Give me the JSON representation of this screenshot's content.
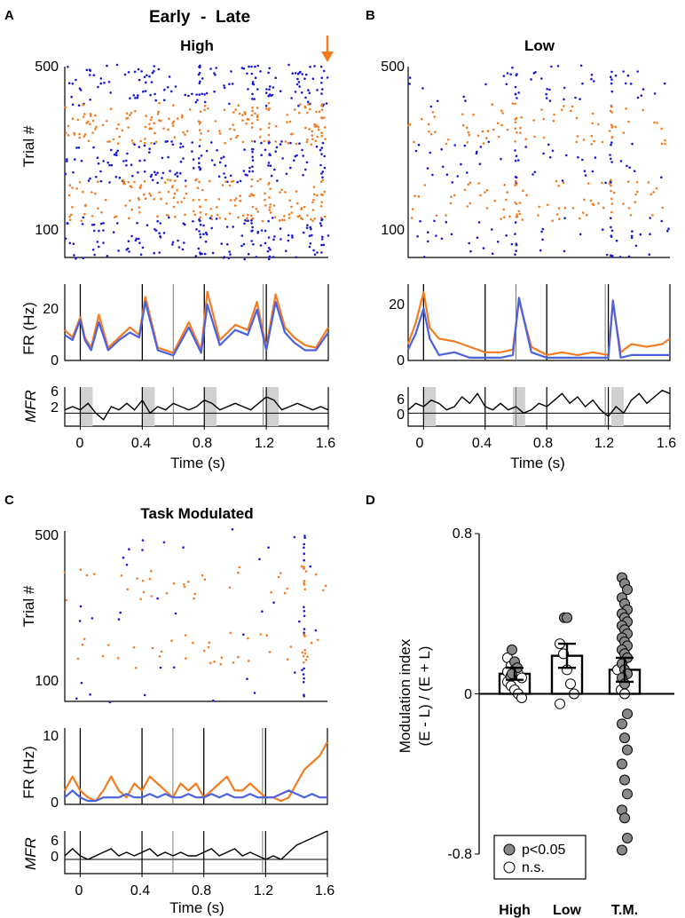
{
  "legend_top": {
    "early": "Early",
    "sep": "-",
    "late": "Late"
  },
  "colors": {
    "early": "#F47B20",
    "late": "#1a1ad6",
    "late_line": "#4a62e0",
    "shade": "#d0d0d0"
  },
  "chart_data": [
    {
      "panel": "A",
      "title": "High",
      "type": "scatter",
      "raster": {
        "ylabel": "Trial #",
        "yticks": [
          "500",
          "100"
        ],
        "blocks_top_to_bottom": [
          "Late",
          "Early",
          "Late",
          "Early",
          "Late"
        ],
        "column_lines_s": [
          0.4,
          0.8,
          1.2
        ],
        "dense_column_s": [
          0.77,
          1.11,
          1.22,
          1.56
        ]
      },
      "fr": {
        "type": "line",
        "ylabel": "FR (Hz)",
        "yticks": [
          "20",
          "0"
        ],
        "ylim": [
          0,
          30
        ],
        "xlim": [
          -0.1,
          1.6
        ],
        "event_lines_s": [
          0,
          0.4,
          0.8,
          1.2
        ],
        "gray_lines_s": [
          0.6,
          1.18
        ],
        "series": [
          {
            "name": "Early",
            "x": [
              -0.1,
              -0.05,
              0,
              0.03,
              0.07,
              0.12,
              0.18,
              0.25,
              0.32,
              0.38,
              0.42,
              0.5,
              0.6,
              0.7,
              0.78,
              0.82,
              0.9,
              1.0,
              1.08,
              1.14,
              1.2,
              1.26,
              1.32,
              1.38,
              1.45,
              1.52,
              1.6
            ],
            "values": [
              12,
              9,
              17,
              9,
              5,
              18,
              5,
              9,
              13,
              10,
              25,
              5,
              3,
              15,
              4,
              27,
              8,
              14,
              12,
              23,
              5,
              26,
              13,
              9,
              6,
              5,
              13
            ]
          },
          {
            "name": "Late",
            "x": [
              -0.1,
              -0.05,
              0,
              0.03,
              0.07,
              0.12,
              0.18,
              0.25,
              0.32,
              0.38,
              0.42,
              0.5,
              0.6,
              0.7,
              0.78,
              0.82,
              0.9,
              1.0,
              1.08,
              1.14,
              1.2,
              1.26,
              1.32,
              1.38,
              1.45,
              1.52,
              1.6
            ],
            "values": [
              10,
              8,
              16,
              8,
              4,
              15,
              4,
              8,
              11,
              9,
              23,
              4,
              2,
              13,
              3,
              22,
              6,
              12,
              10,
              20,
              4,
              23,
              11,
              7,
              4,
              4,
              11
            ]
          }
        ]
      },
      "mfr": {
        "type": "line",
        "ylabel": "MFR",
        "yticks": [
          "6",
          "2"
        ],
        "xlabel": "Time (s)",
        "xticks": [
          "0",
          "0.4",
          "0.8",
          "1.2",
          "1.6"
        ],
        "shaded_s": [
          [
            0,
            0.08
          ],
          [
            0.4,
            0.48
          ],
          [
            0.8,
            0.88
          ],
          [
            1.2,
            1.28
          ]
        ],
        "x": [
          -0.1,
          -0.05,
          0,
          0.05,
          0.1,
          0.15,
          0.2,
          0.25,
          0.3,
          0.35,
          0.4,
          0.45,
          0.5,
          0.55,
          0.6,
          0.65,
          0.7,
          0.75,
          0.8,
          0.85,
          0.9,
          0.95,
          1.0,
          1.05,
          1.1,
          1.15,
          1.2,
          1.25,
          1.3,
          1.35,
          1.4,
          1.45,
          1.5,
          1.55,
          1.6
        ],
        "values": [
          1,
          2,
          1,
          3,
          0,
          -2,
          2,
          1,
          3,
          1,
          4,
          0,
          2,
          1,
          3,
          2,
          1,
          2,
          4,
          3,
          1,
          2,
          3,
          2,
          1,
          3,
          5,
          4,
          1,
          2,
          3,
          2,
          1,
          2,
          1
        ]
      }
    },
    {
      "panel": "B",
      "title": "Low",
      "type": "scatter",
      "raster": {
        "ylabel": "",
        "yticks": [
          "500",
          "100"
        ],
        "blocks_top_to_bottom": [
          "Late",
          "Early",
          "Late",
          "Early",
          "Late"
        ],
        "column_lines_s": [
          0.4,
          0.6,
          0.8,
          1.2
        ],
        "dense_column_s": [
          0.6,
          1.22
        ]
      },
      "fr": {
        "type": "line",
        "ylabel": "",
        "yticks": [
          "20",
          "0"
        ],
        "ylim": [
          0,
          28
        ],
        "xlim": [
          -0.1,
          1.6
        ],
        "event_lines_s": [
          0,
          0.4,
          0.8,
          1.2
        ],
        "gray_lines_s": [
          0.6,
          1.18
        ],
        "series": [
          {
            "name": "Early",
            "x": [
              -0.1,
              -0.05,
              0,
              0.04,
              0.1,
              0.2,
              0.3,
              0.4,
              0.5,
              0.58,
              0.62,
              0.7,
              0.8,
              0.9,
              1.0,
              1.1,
              1.2,
              1.23,
              1.28,
              1.35,
              1.45,
              1.55,
              1.6
            ],
            "values": [
              6,
              14,
              25,
              12,
              8,
              7,
              5,
              3,
              3,
              4,
              22,
              5,
              2,
              3,
              2,
              3,
              2,
              21,
              3,
              6,
              5,
              6,
              8
            ]
          },
          {
            "name": "Late",
            "x": [
              -0.1,
              -0.05,
              0,
              0.04,
              0.1,
              0.2,
              0.3,
              0.4,
              0.5,
              0.58,
              0.62,
              0.7,
              0.8,
              0.9,
              1.0,
              1.1,
              1.2,
              1.23,
              1.28,
              1.35,
              1.45,
              1.55,
              1.6
            ],
            "values": [
              4,
              10,
              19,
              8,
              2,
              3,
              1,
              1,
              1,
              2,
              23,
              3,
              1,
              1,
              1,
              1,
              1,
              22,
              1,
              2,
              2,
              2,
              2
            ]
          }
        ]
      },
      "mfr": {
        "type": "line",
        "ylabel": "",
        "yticks": [
          "6",
          "0"
        ],
        "xlabel": "Time (s)",
        "xticks": [
          "0",
          "0.4",
          "0.8",
          "1.2",
          "1.6"
        ],
        "shaded_s": [
          [
            0,
            0.08
          ],
          [
            0.58,
            0.66
          ],
          [
            1.22,
            1.3
          ]
        ],
        "x": [
          -0.1,
          -0.05,
          0,
          0.05,
          0.1,
          0.15,
          0.2,
          0.25,
          0.3,
          0.35,
          0.4,
          0.45,
          0.5,
          0.55,
          0.6,
          0.65,
          0.7,
          0.75,
          0.8,
          0.85,
          0.9,
          0.95,
          1.0,
          1.05,
          1.1,
          1.15,
          1.2,
          1.25,
          1.3,
          1.35,
          1.4,
          1.45,
          1.5,
          1.55,
          1.6
        ],
        "values": [
          1,
          3,
          2,
          4,
          3,
          1,
          2,
          5,
          3,
          6,
          2,
          1,
          3,
          1,
          2,
          0,
          1,
          3,
          2,
          4,
          6,
          3,
          5,
          2,
          4,
          1,
          -1,
          2,
          0,
          4,
          6,
          3,
          5,
          7,
          6
        ]
      }
    },
    {
      "panel": "C",
      "title": "Task Modulated",
      "type": "scatter",
      "raster": {
        "ylabel": "Trial #",
        "yticks": [
          "500",
          "100"
        ],
        "blocks_top_to_bottom": [
          "Late",
          "Early",
          "Late",
          "Early",
          "Late"
        ],
        "column_lines_s": [],
        "dense_column_s": [
          1.45
        ]
      },
      "fr": {
        "type": "line",
        "ylabel": "FR (Hz)",
        "yticks": [
          "10",
          "0"
        ],
        "ylim": [
          0,
          11
        ],
        "xlim": [
          -0.1,
          1.6
        ],
        "event_lines_s": [
          0,
          0.4,
          0.8,
          1.2
        ],
        "gray_lines_s": [
          0.6,
          1.18
        ],
        "series": [
          {
            "name": "Early",
            "x": [
              -0.1,
              -0.05,
              0,
              0.05,
              0.1,
              0.15,
              0.2,
              0.25,
              0.3,
              0.35,
              0.4,
              0.45,
              0.5,
              0.55,
              0.6,
              0.65,
              0.7,
              0.75,
              0.8,
              0.85,
              0.9,
              0.95,
              1.0,
              1.05,
              1.1,
              1.15,
              1.2,
              1.25,
              1.3,
              1.35,
              1.4,
              1.45,
              1.5,
              1.55,
              1.6
            ],
            "values": [
              2,
              4,
              2,
              1,
              0.5,
              2,
              4,
              2,
              1,
              3,
              2,
              4,
              3,
              2,
              1,
              3,
              2,
              3,
              1,
              2,
              3,
              4,
              2,
              2,
              3,
              2,
              1,
              1,
              0.5,
              1,
              3,
              5,
              6,
              7,
              9
            ]
          },
          {
            "name": "Late",
            "x": [
              -0.1,
              -0.05,
              0,
              0.05,
              0.1,
              0.15,
              0.2,
              0.25,
              0.3,
              0.35,
              0.4,
              0.45,
              0.5,
              0.55,
              0.6,
              0.65,
              0.7,
              0.75,
              0.8,
              0.85,
              0.9,
              0.95,
              1.0,
              1.05,
              1.1,
              1.15,
              1.2,
              1.25,
              1.3,
              1.35,
              1.4,
              1.45,
              1.5,
              1.55,
              1.6
            ],
            "values": [
              1,
              2,
              1,
              0.5,
              0.5,
              1,
              1,
              1,
              1.5,
              1,
              1,
              1.5,
              1,
              1.5,
              1,
              1,
              1.5,
              1,
              1,
              1.5,
              1,
              1.5,
              1,
              1,
              1.5,
              1,
              1,
              1,
              1.5,
              2,
              1.5,
              1,
              1.5,
              1,
              1
            ]
          }
        ]
      },
      "mfr": {
        "type": "line",
        "ylabel": "MFR",
        "yticks": [
          "6",
          "0"
        ],
        "xlabel": "Time (s)",
        "xticks": [
          "0",
          "0.4",
          "0.8",
          "1.2",
          "1.6"
        ],
        "shaded_s": [],
        "x": [
          -0.1,
          -0.05,
          0,
          0.05,
          0.1,
          0.15,
          0.2,
          0.25,
          0.3,
          0.35,
          0.4,
          0.45,
          0.5,
          0.55,
          0.6,
          0.65,
          0.7,
          0.75,
          0.8,
          0.85,
          0.9,
          0.95,
          1.0,
          1.05,
          1.1,
          1.15,
          1.2,
          1.25,
          1.3,
          1.35,
          1.4,
          1.45,
          1.5,
          1.55,
          1.6
        ],
        "values": [
          1,
          3,
          1,
          0,
          1,
          2,
          3,
          1,
          2,
          1,
          2,
          3,
          1,
          2,
          1,
          2,
          1,
          1,
          2,
          3,
          1,
          2,
          3,
          1,
          2,
          1,
          0,
          1,
          0,
          2,
          4,
          5,
          6,
          7,
          8
        ]
      }
    },
    {
      "panel": "D",
      "type": "bar",
      "ylabel_line1": "Modulation index",
      "ylabel_line2": "(E - L) / (E + L)",
      "categories": [
        "High",
        "Low",
        "T.M."
      ],
      "values": [
        0.1,
        0.19,
        0.12
      ],
      "errors": [
        0.03,
        0.06,
        0.06
      ],
      "ylim": [
        -0.8,
        0.8
      ],
      "yticks": [
        "0.8",
        "0",
        "-0.8"
      ],
      "points": {
        "High": {
          "filled": [
            0.22,
            0.16,
            0.13,
            0.1
          ],
          "open": [
            0.18,
            0.14,
            0.12,
            0.1,
            0.08,
            0.06,
            0.04,
            0.02,
            0.0,
            -0.02,
            0.11,
            0.09
          ]
        },
        "Low": {
          "filled": [
            0.38,
            0.38
          ],
          "open": [
            0.25,
            0.2,
            0.12,
            0.05,
            0.0,
            -0.05
          ]
        },
        "T.M.": {
          "filled": [
            0.58,
            0.55,
            0.52,
            0.48,
            0.45,
            0.42,
            0.4,
            0.38,
            0.36,
            0.34,
            0.32,
            0.3,
            0.28,
            0.26,
            0.24,
            0.22,
            0.2,
            0.18,
            0.15,
            0.12,
            0.1,
            0.08,
            0.05,
            -0.1,
            -0.15,
            -0.22,
            -0.28,
            -0.35,
            -0.43,
            -0.5,
            -0.58,
            -0.62,
            -0.72,
            -0.78
          ],
          "open": [
            0.12,
            0.02,
            0.0
          ]
        }
      },
      "legend": [
        {
          "label": "p<0.05",
          "marker": "filled"
        },
        {
          "label": "n.s.",
          "marker": "open"
        }
      ]
    }
  ]
}
